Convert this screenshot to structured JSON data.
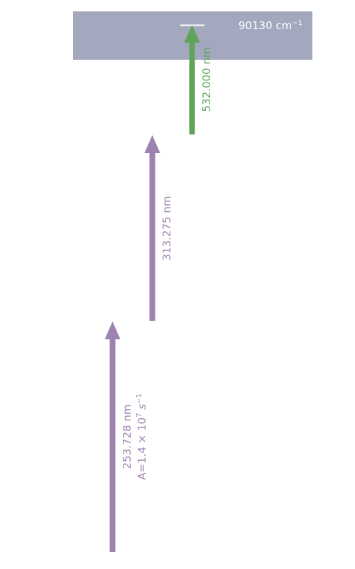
{
  "colors": {
    "band": "#a3a8be",
    "level_line": "#ffffff",
    "band_text": "#ffffff",
    "purple": "#9e82b0",
    "green": "#5fa45a"
  },
  "ionization_band": {
    "energy_value": "90130",
    "energy_unit": "cm",
    "energy_unit_exp": "−1"
  },
  "transitions": [
    {
      "wavelength": "253.728",
      "unit": "nm",
      "rate": "A=1.4 × 10",
      "rate_exp_1": "7",
      "rate_unit": " s",
      "rate_exp_2": "−1",
      "color": "purple"
    },
    {
      "wavelength": "313.275",
      "unit": "nm",
      "color": "purple"
    },
    {
      "wavelength": "532.000",
      "unit": "nm",
      "color": "green"
    }
  ]
}
